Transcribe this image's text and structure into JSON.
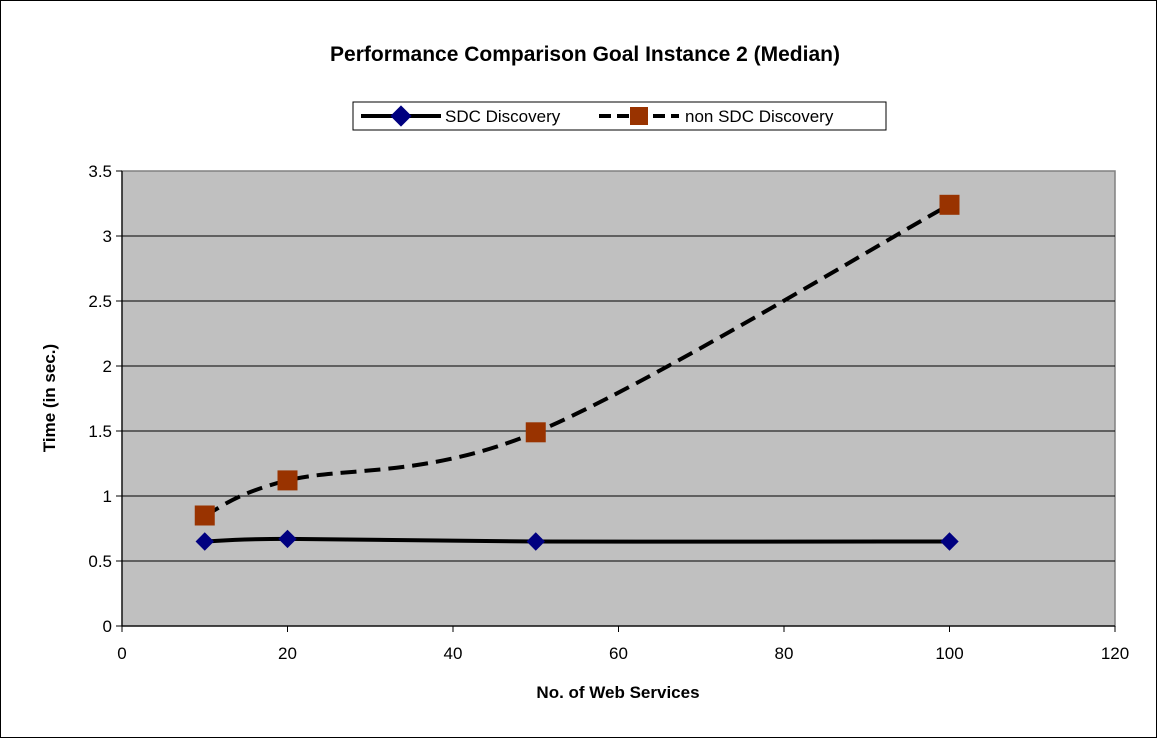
{
  "chart_data": {
    "type": "scatter",
    "title": "Performance Comparison Goal Instance 2 (Median)",
    "xlabel": "No. of Web Services",
    "ylabel": "Time (in sec.)",
    "xlim": [
      0,
      120
    ],
    "ylim": [
      0,
      3.5
    ],
    "xticks": [
      0,
      20,
      40,
      60,
      80,
      100,
      120
    ],
    "yticks": [
      0,
      0.5,
      1,
      1.5,
      2,
      2.5,
      3,
      3.5
    ],
    "grid": true,
    "legend_position": "top",
    "plot_background": "#c0c0c0",
    "series": [
      {
        "name": "SDC Discovery",
        "x": [
          10,
          20,
          50,
          100
        ],
        "y": [
          0.65,
          0.67,
          0.65,
          0.65
        ],
        "marker": "diamond",
        "marker_color": "#000080",
        "line": "solid",
        "line_color": "#000000"
      },
      {
        "name": "non SDC Discovery",
        "x": [
          10,
          20,
          50,
          100
        ],
        "y": [
          0.85,
          1.12,
          1.49,
          3.24
        ],
        "marker": "square",
        "marker_color": "#993300",
        "line": "dashed",
        "line_color": "#000000"
      }
    ]
  }
}
